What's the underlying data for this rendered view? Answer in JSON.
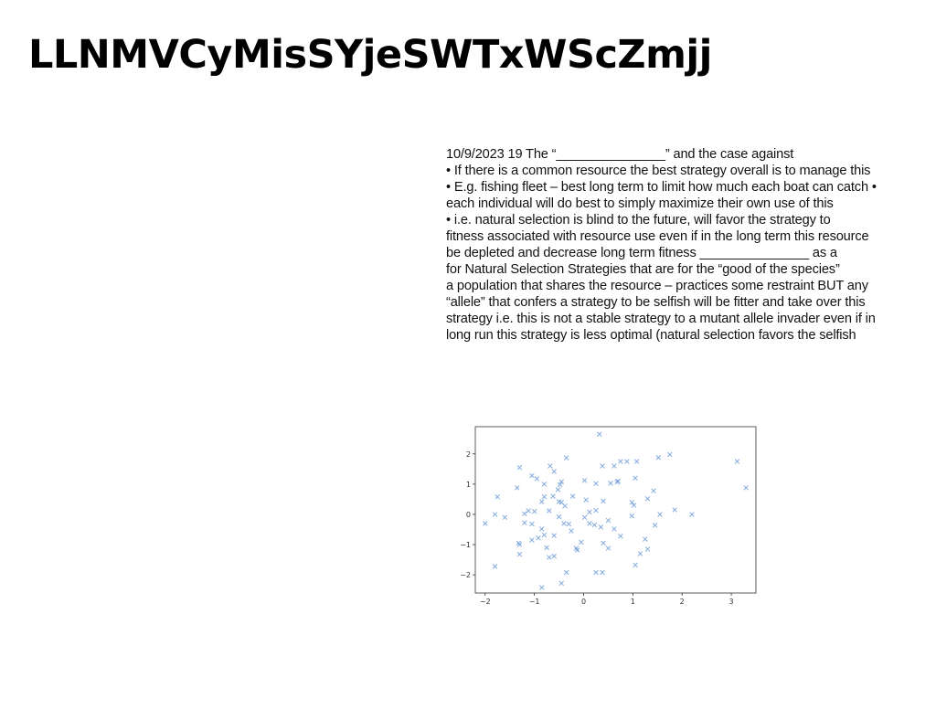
{
  "title": "LLNMVCyMisSYjeSWTxWScZmjj",
  "text_lines": [
    "10/9/2023 19 The “_______________” and the case against",
    "• If there is a common resource the best strategy overall is to manage this",
    "• E.g. fishing fleet – best long term to limit how much each boat can catch •",
    "each individual will do best to simply maximize their own use of this",
    "• i.e. natural selection is blind to the future, will favor the strategy to",
    "fitness associated with resource use even if in the long term this resource",
    "be depleted and decrease long term fitness _______________ as a",
    "for Natural Selection Strategies that are for the “good of the species”",
    "a population that shares the resource – practices some restraint BUT any",
    "“allele” that confers a strategy to be selfish will be fitter and take over this",
    "strategy i.e. this is not a stable strategy to a mutant allele invader even if in",
    "long run this strategy is less optimal (natural selection favors the selfish"
  ],
  "chart_data": {
    "type": "scatter",
    "marker": "x",
    "color": "#5b8fd4",
    "xlim": [
      -2.2,
      3.5
    ],
    "ylim": [
      -2.6,
      2.9
    ],
    "xticks": [
      -2,
      -1,
      0,
      1,
      2,
      3
    ],
    "yticks": [
      -2,
      -1,
      0,
      1,
      2
    ],
    "xtick_labels": [
      "−2",
      "−1",
      "0",
      "1",
      "2",
      "3"
    ],
    "ytick_labels": [
      "−2",
      "−1",
      "0",
      "1",
      "2"
    ],
    "grid": false,
    "points": [
      [
        0.32,
        2.65
      ],
      [
        3.12,
        1.75
      ],
      [
        3.3,
        0.88
      ],
      [
        1.75,
        1.98
      ],
      [
        1.52,
        1.88
      ],
      [
        -0.35,
        1.87
      ],
      [
        -1.3,
        1.55
      ],
      [
        -0.68,
        1.6
      ],
      [
        0.38,
        1.6
      ],
      [
        0.62,
        1.6
      ],
      [
        0.75,
        1.75
      ],
      [
        0.88,
        1.75
      ],
      [
        1.08,
        1.75
      ],
      [
        -0.6,
        1.42
      ],
      [
        -1.05,
        1.28
      ],
      [
        -0.95,
        1.18
      ],
      [
        1.05,
        1.2
      ],
      [
        -0.45,
        1.08
      ],
      [
        -0.48,
        0.98
      ],
      [
        0.25,
        1.02
      ],
      [
        0.55,
        1.03
      ],
      [
        0.7,
        1.1
      ],
      [
        0.68,
        1.07
      ],
      [
        0.02,
        1.12
      ],
      [
        -0.8,
        1.0
      ],
      [
        -1.35,
        0.88
      ],
      [
        -0.52,
        0.82
      ],
      [
        -0.62,
        0.6
      ],
      [
        1.42,
        0.78
      ],
      [
        -0.8,
        0.58
      ],
      [
        -0.22,
        0.6
      ],
      [
        1.3,
        0.52
      ],
      [
        -1.75,
        0.58
      ],
      [
        -0.5,
        0.42
      ],
      [
        -0.45,
        0.4
      ],
      [
        0.05,
        0.48
      ],
      [
        0.4,
        0.44
      ],
      [
        -0.85,
        0.42
      ],
      [
        0.98,
        0.4
      ],
      [
        1.02,
        0.3
      ],
      [
        -0.38,
        0.28
      ],
      [
        -1.12,
        0.12
      ],
      [
        -1.0,
        0.1
      ],
      [
        0.12,
        0.08
      ],
      [
        0.25,
        0.13
      ],
      [
        -1.2,
        0.02
      ],
      [
        -0.7,
        0.12
      ],
      [
        1.85,
        0.15
      ],
      [
        2.2,
        0.0
      ],
      [
        1.55,
        0.0
      ],
      [
        -1.8,
        0.0
      ],
      [
        -1.6,
        -0.1
      ],
      [
        -0.5,
        -0.08
      ],
      [
        0.98,
        -0.05
      ],
      [
        0.02,
        -0.1
      ],
      [
        0.5,
        -0.2
      ],
      [
        -2.0,
        -0.3
      ],
      [
        -1.2,
        -0.28
      ],
      [
        -1.05,
        -0.32
      ],
      [
        -0.4,
        -0.3
      ],
      [
        -0.3,
        -0.32
      ],
      [
        0.12,
        -0.3
      ],
      [
        0.22,
        -0.35
      ],
      [
        0.35,
        -0.42
      ],
      [
        -0.85,
        -0.48
      ],
      [
        0.62,
        -0.48
      ],
      [
        1.45,
        -0.36
      ],
      [
        -0.8,
        -0.68
      ],
      [
        -0.6,
        -0.7
      ],
      [
        -0.25,
        -0.55
      ],
      [
        -1.05,
        -0.85
      ],
      [
        -0.92,
        -0.78
      ],
      [
        0.75,
        -0.72
      ],
      [
        1.25,
        -0.82
      ],
      [
        -1.32,
        -0.95
      ],
      [
        -1.3,
        -1.0
      ],
      [
        0.4,
        -0.95
      ],
      [
        -0.05,
        -0.92
      ],
      [
        -0.75,
        -1.1
      ],
      [
        -0.15,
        -1.12
      ],
      [
        -0.13,
        -1.18
      ],
      [
        0.5,
        -1.12
      ],
      [
        1.3,
        -1.15
      ],
      [
        1.15,
        -1.3
      ],
      [
        -1.3,
        -1.32
      ],
      [
        -0.7,
        -1.42
      ],
      [
        -0.6,
        -1.38
      ],
      [
        1.05,
        -1.68
      ],
      [
        -1.8,
        -1.72
      ],
      [
        -0.35,
        -1.92
      ],
      [
        0.25,
        -1.92
      ],
      [
        0.38,
        -1.92
      ],
      [
        -0.45,
        -2.28
      ],
      [
        -0.85,
        -2.42
      ]
    ]
  }
}
